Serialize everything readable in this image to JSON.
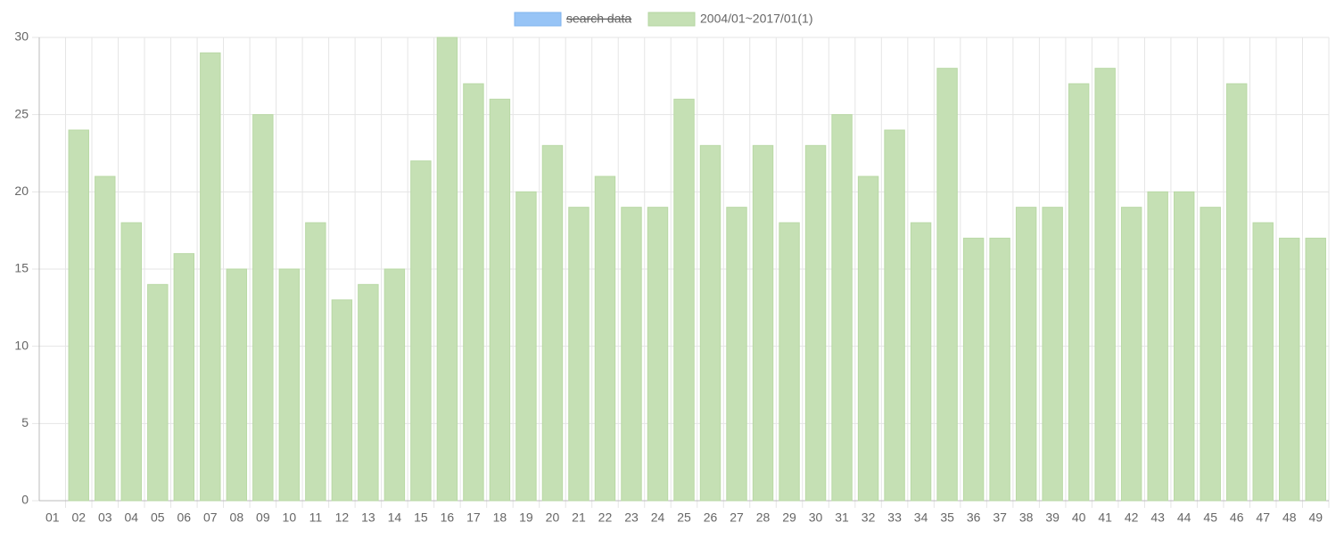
{
  "chart_data": {
    "type": "bar",
    "categories": [
      "01",
      "02",
      "03",
      "04",
      "05",
      "06",
      "07",
      "08",
      "09",
      "10",
      "11",
      "12",
      "13",
      "14",
      "15",
      "16",
      "17",
      "18",
      "19",
      "20",
      "21",
      "22",
      "23",
      "24",
      "25",
      "26",
      "27",
      "28",
      "29",
      "30",
      "31",
      "32",
      "33",
      "34",
      "35",
      "36",
      "37",
      "38",
      "39",
      "40",
      "41",
      "42",
      "43",
      "44",
      "45",
      "46",
      "47",
      "48",
      "49"
    ],
    "series": [
      {
        "name": "search data",
        "color": "#97c4f6",
        "hidden": true,
        "values": [
          null,
          null,
          null,
          null,
          null,
          null,
          null,
          null,
          null,
          null,
          null,
          null,
          null,
          null,
          null,
          null,
          null,
          null,
          null,
          null,
          null,
          null,
          null,
          null,
          null,
          null,
          null,
          null,
          null,
          null,
          null,
          null,
          null,
          null,
          null,
          null,
          null,
          null,
          null,
          null,
          null,
          null,
          null,
          null,
          null,
          null,
          null,
          null,
          null
        ]
      },
      {
        "name": "2004/01~2017/01(1)",
        "color": "#c5e0b4",
        "values": [
          0,
          24,
          21,
          18,
          14,
          16,
          29,
          15,
          25,
          15,
          18,
          13,
          14,
          15,
          22,
          30,
          27,
          26,
          20,
          23,
          19,
          21,
          19,
          19,
          26,
          23,
          19,
          23,
          18,
          23,
          25,
          21,
          24,
          18,
          28,
          17,
          17,
          19,
          19,
          27,
          28,
          19,
          20,
          20,
          19,
          27,
          18,
          17,
          17
        ]
      }
    ],
    "ylim": [
      0,
      30
    ],
    "yticks": [
      0,
      5,
      10,
      15,
      20,
      25,
      30
    ],
    "grid": true,
    "legend": "top"
  }
}
